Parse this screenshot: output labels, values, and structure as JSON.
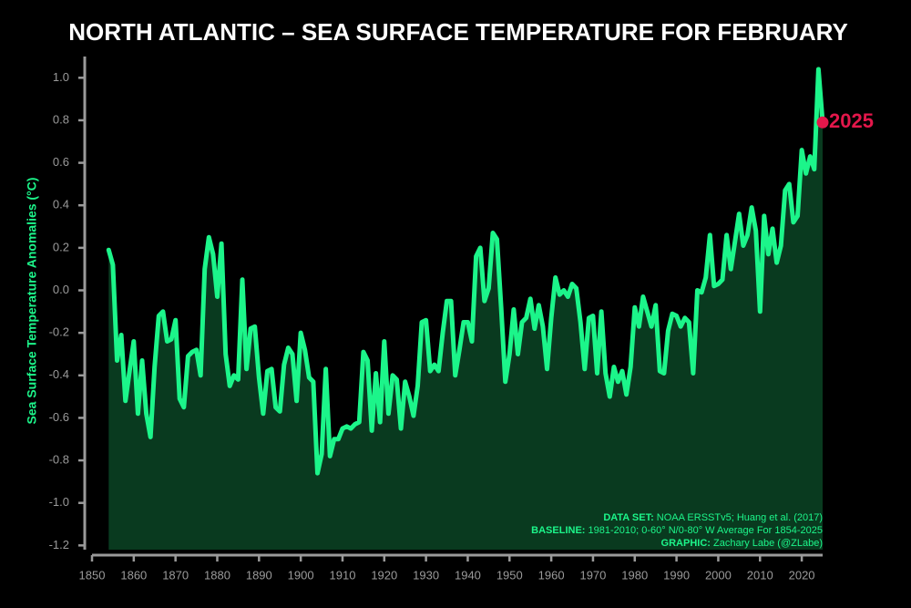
{
  "chart_data": {
    "type": "area-line",
    "title": "NORTH ATLANTIC – SEA SURFACE TEMPERATURE FOR FEBRUARY",
    "y_label": "Sea Surface Temperature Anomalies (°C)",
    "annotation": "2025",
    "footer": [
      {
        "key": "DATA SET:",
        "text": " NOAA ERSSTv5; Huang et al. (2017)"
      },
      {
        "key": "BASELINE:",
        "text": " 1981-2010; 0-60° N/0-80° W Average For 1854-2025"
      },
      {
        "key": "GRAPHIC:",
        "text": " Zachary Labe (@ZLabe)"
      }
    ],
    "color": "#1cf58a",
    "fill": "#093a1f",
    "marker_color": "#e3174b",
    "x": [
      1854,
      1855,
      1856,
      1857,
      1858,
      1859,
      1860,
      1861,
      1862,
      1863,
      1864,
      1865,
      1866,
      1867,
      1868,
      1869,
      1870,
      1871,
      1872,
      1873,
      1874,
      1875,
      1876,
      1877,
      1878,
      1879,
      1880,
      1881,
      1882,
      1883,
      1884,
      1885,
      1886,
      1887,
      1888,
      1889,
      1890,
      1891,
      1892,
      1893,
      1894,
      1895,
      1896,
      1897,
      1898,
      1899,
      1900,
      1901,
      1902,
      1903,
      1904,
      1905,
      1906,
      1907,
      1908,
      1909,
      1910,
      1911,
      1912,
      1913,
      1914,
      1915,
      1916,
      1917,
      1918,
      1919,
      1920,
      1921,
      1922,
      1923,
      1924,
      1925,
      1926,
      1927,
      1928,
      1929,
      1930,
      1931,
      1932,
      1933,
      1934,
      1935,
      1936,
      1937,
      1938,
      1939,
      1940,
      1941,
      1942,
      1943,
      1944,
      1945,
      1946,
      1947,
      1948,
      1949,
      1950,
      1951,
      1952,
      1953,
      1954,
      1955,
      1956,
      1957,
      1958,
      1959,
      1960,
      1961,
      1962,
      1963,
      1964,
      1965,
      1966,
      1967,
      1968,
      1969,
      1970,
      1971,
      1972,
      1973,
      1974,
      1975,
      1976,
      1977,
      1978,
      1979,
      1980,
      1981,
      1982,
      1983,
      1984,
      1985,
      1986,
      1987,
      1988,
      1989,
      1990,
      1991,
      1992,
      1993,
      1994,
      1995,
      1996,
      1997,
      1998,
      1999,
      2000,
      2001,
      2002,
      2003,
      2004,
      2005,
      2006,
      2007,
      2008,
      2009,
      2010,
      2011,
      2012,
      2013,
      2014,
      2015,
      2016,
      2017,
      2018,
      2019,
      2020,
      2021,
      2022,
      2023,
      2024,
      2025
    ],
    "values": [
      0.19,
      0.12,
      -0.33,
      -0.21,
      -0.52,
      -0.38,
      -0.24,
      -0.58,
      -0.33,
      -0.58,
      -0.69,
      -0.36,
      -0.12,
      -0.1,
      -0.24,
      -0.23,
      -0.14,
      -0.51,
      -0.55,
      -0.31,
      -0.29,
      -0.28,
      -0.4,
      0.1,
      0.25,
      0.17,
      -0.03,
      0.22,
      -0.3,
      -0.45,
      -0.4,
      -0.42,
      0.05,
      -0.37,
      -0.18,
      -0.17,
      -0.41,
      -0.58,
      -0.38,
      -0.37,
      -0.55,
      -0.57,
      -0.35,
      -0.27,
      -0.3,
      -0.52,
      -0.2,
      -0.28,
      -0.41,
      -0.43,
      -0.86,
      -0.77,
      -0.37,
      -0.78,
      -0.7,
      -0.7,
      -0.65,
      -0.64,
      -0.65,
      -0.63,
      -0.62,
      -0.29,
      -0.33,
      -0.66,
      -0.39,
      -0.62,
      -0.24,
      -0.58,
      -0.4,
      -0.42,
      -0.65,
      -0.43,
      -0.5,
      -0.59,
      -0.45,
      -0.15,
      -0.14,
      -0.38,
      -0.35,
      -0.38,
      -0.2,
      -0.05,
      -0.05,
      -0.4,
      -0.28,
      -0.15,
      -0.15,
      -0.24,
      0.16,
      0.2,
      -0.05,
      0.01,
      0.27,
      0.24,
      -0.08,
      -0.43,
      -0.3,
      -0.09,
      -0.3,
      -0.15,
      -0.13,
      -0.04,
      -0.18,
      -0.07,
      -0.17,
      -0.37,
      -0.13,
      0.06,
      -0.02,
      0.0,
      -0.03,
      0.03,
      0.01,
      -0.15,
      -0.37,
      -0.13,
      -0.12,
      -0.39,
      -0.1,
      -0.39,
      -0.5,
      -0.36,
      -0.43,
      -0.38,
      -0.49,
      -0.36,
      -0.08,
      -0.17,
      -0.03,
      -0.1,
      -0.17,
      -0.07,
      -0.38,
      -0.39,
      -0.19,
      -0.11,
      -0.12,
      -0.17,
      -0.13,
      -0.15,
      -0.39,
      0.0,
      -0.01,
      0.06,
      0.26,
      0.02,
      0.03,
      0.05,
      0.26,
      0.1,
      0.23,
      0.36,
      0.21,
      0.26,
      0.39,
      0.28,
      -0.1,
      0.35,
      0.17,
      0.29,
      0.13,
      0.21,
      0.47,
      0.5,
      0.32,
      0.35,
      0.66,
      0.55,
      0.63,
      0.57,
      1.04,
      0.79
    ],
    "xlim": [
      1850,
      2025
    ],
    "xticks": [
      1850,
      1860,
      1870,
      1880,
      1890,
      1900,
      1910,
      1920,
      1930,
      1940,
      1950,
      1960,
      1970,
      1980,
      1990,
      2000,
      2010,
      2020
    ],
    "ylim": [
      -1.22,
      1.1
    ],
    "yticks": [
      {
        "value": 1.0,
        "label": "1.0"
      },
      0.8,
      0.6,
      0.4,
      0.2,
      {
        "value": 0,
        "label": "0.0"
      },
      -0.2,
      -0.4,
      -0.6,
      -0.8,
      {
        "value": -1.0,
        "label": "-1.0"
      },
      -1.2
    ]
  }
}
